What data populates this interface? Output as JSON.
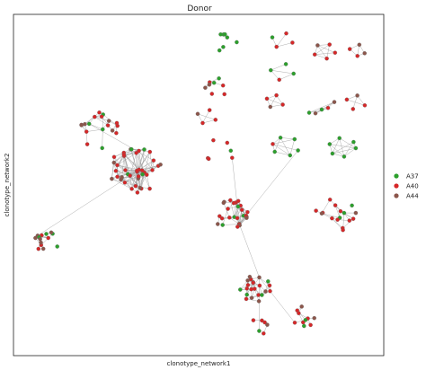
{
  "chart_data": {
    "type": "scatter",
    "title": "Donor",
    "xlabel": "clonotype_network1",
    "ylabel": "clonotype_network2",
    "grid": false,
    "legend_placement": "right",
    "legend": [
      {
        "name": "A37",
        "color": "#2ca02c"
      },
      {
        "name": "A40",
        "color": "#d62728"
      },
      {
        "name": "A44",
        "color": "#8c564b"
      }
    ],
    "edge_color": "#9a9a9a",
    "node_outline": "#666666"
  }
}
